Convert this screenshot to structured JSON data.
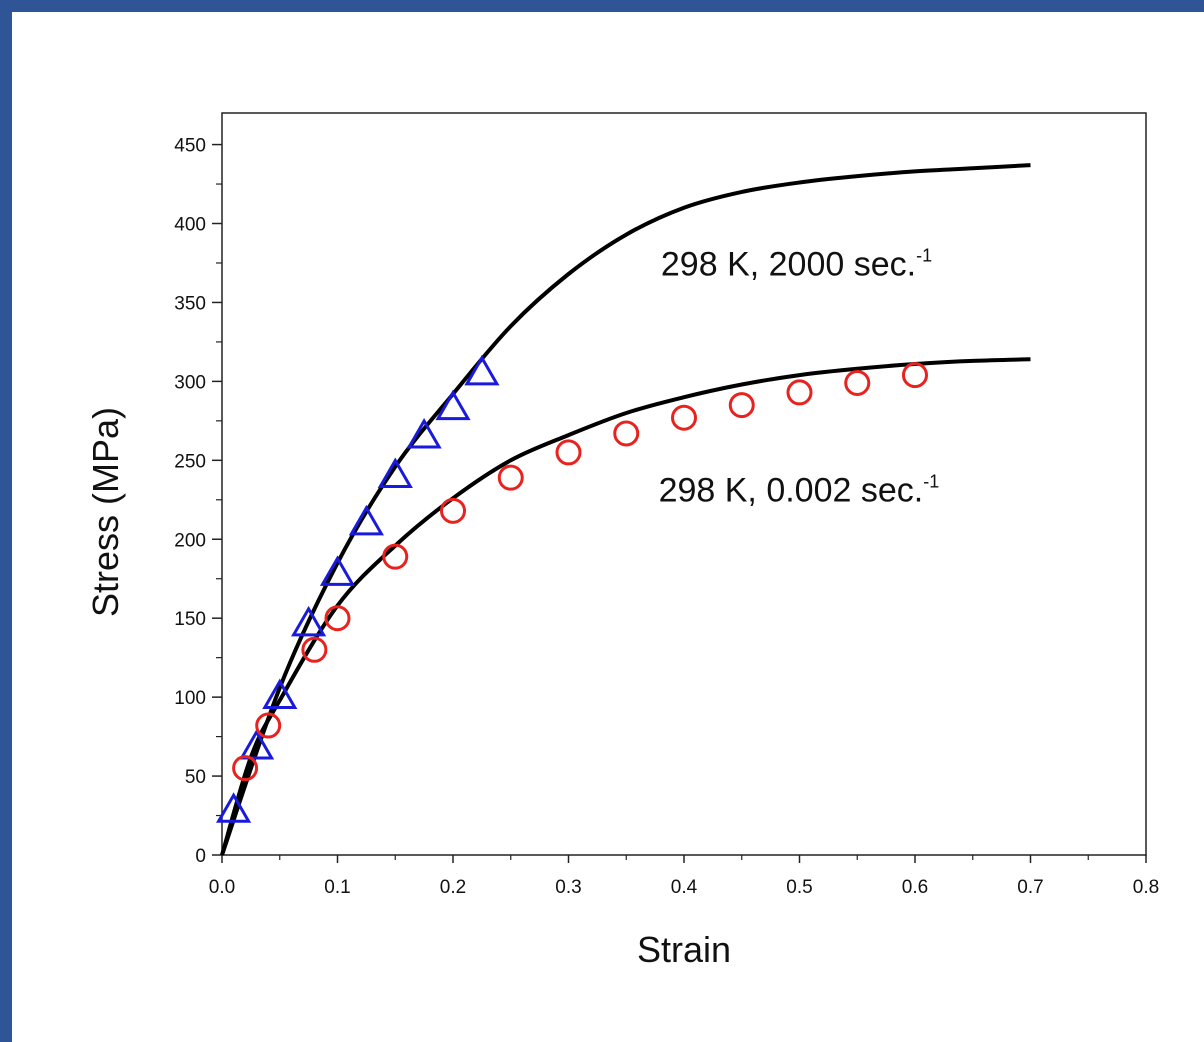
{
  "chart_data": {
    "type": "scatter",
    "title": "",
    "xlabel": "Strain",
    "ylabel": "Stress (MPa)",
    "xlim": [
      0.0,
      0.8
    ],
    "ylim": [
      0,
      470
    ],
    "x_ticks": [
      "0.0",
      "0.1",
      "0.2",
      "0.3",
      "0.4",
      "0.5",
      "0.6",
      "0.7",
      "0.8"
    ],
    "y_ticks": [
      "0",
      "50",
      "100",
      "150",
      "200",
      "250",
      "300",
      "350",
      "400",
      "450"
    ],
    "grid": false,
    "legend": "none",
    "series": [
      {
        "marker": "triangle",
        "color": "#1a1adc",
        "x": [
          0.01,
          0.03,
          0.05,
          0.075,
          0.1,
          0.125,
          0.15,
          0.175,
          0.2,
          0.225
        ],
        "y": [
          28,
          68,
          100,
          146,
          178,
          210,
          240,
          265,
          283,
          305
        ]
      },
      {
        "marker": "circle",
        "color": "#e8231f",
        "x": [
          0.02,
          0.04,
          0.08,
          0.1,
          0.15,
          0.2,
          0.25,
          0.3,
          0.35,
          0.4,
          0.45,
          0.5,
          0.55,
          0.6
        ],
        "y": [
          55,
          82,
          130,
          150,
          189,
          218,
          239,
          255,
          267,
          277,
          285,
          293,
          299,
          304
        ]
      }
    ],
    "fit_lines": [
      {
        "color": "#000000",
        "x": [
          0.0,
          0.05,
          0.1,
          0.15,
          0.2,
          0.25,
          0.3,
          0.35,
          0.4,
          0.45,
          0.5,
          0.55,
          0.6,
          0.65,
          0.7
        ],
        "y": [
          0,
          106,
          185,
          246,
          292,
          335,
          368,
          393,
          410,
          420,
          426,
          430,
          433,
          435,
          437
        ]
      },
      {
        "color": "#000000",
        "x": [
          0.0,
          0.025,
          0.05,
          0.1,
          0.15,
          0.2,
          0.25,
          0.3,
          0.35,
          0.4,
          0.45,
          0.5,
          0.55,
          0.6,
          0.65,
          0.7
        ],
        "y": [
          0,
          62,
          98,
          158,
          196,
          226,
          250,
          266,
          280,
          290,
          298,
          304,
          308,
          311,
          313,
          314
        ]
      }
    ],
    "annotations": [
      {
        "text": "298 K, 2000 sec.",
        "sup": "-1",
        "x": 0.38,
        "y": 367
      },
      {
        "text": "298 K,  0.002 sec.",
        "sup": "-1",
        "x": 0.378,
        "y": 224
      }
    ]
  }
}
